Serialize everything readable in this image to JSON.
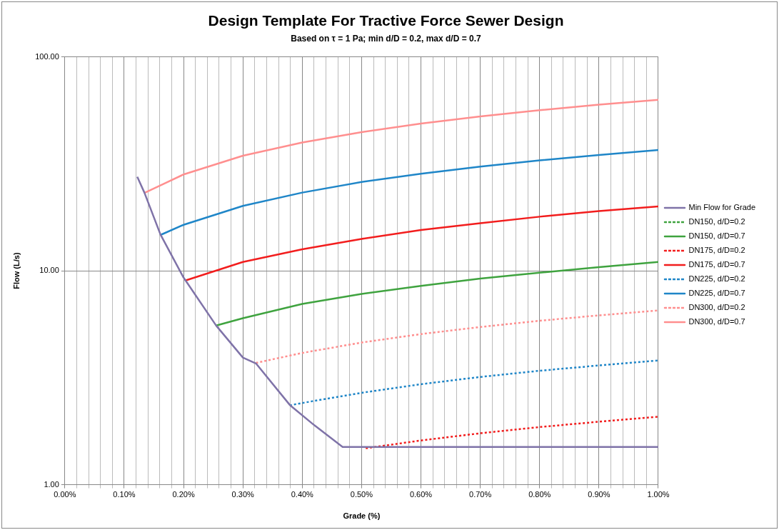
{
  "chart_data": {
    "type": "line",
    "title": "Design Template For Tractive Force Sewer Design",
    "subtitle": "Based on τ = 1 Pa; min d/D = 0.2, max d/D = 0.7",
    "xlabel": "Grade (%)",
    "ylabel": "Flow (L/s)",
    "log": "y",
    "grid": true,
    "legend": "right",
    "marker": "none",
    "xlim": [
      0,
      1
    ],
    "ylim": [
      1,
      100
    ],
    "xticks": [
      {
        "value": 0,
        "label": "0.00%"
      },
      {
        "value": 0.02,
        "label": null
      },
      {
        "value": 0.04,
        "label": null
      },
      {
        "value": 0.06,
        "label": null
      },
      {
        "value": 0.08,
        "label": null
      },
      {
        "value": 0.1,
        "label": "0.10%"
      },
      {
        "value": 0.12,
        "label": null
      },
      {
        "value": 0.14,
        "label": null
      },
      {
        "value": 0.16,
        "label": null
      },
      {
        "value": 0.18,
        "label": null
      },
      {
        "value": 0.2,
        "label": "0.20%"
      },
      {
        "value": 0.22,
        "label": null
      },
      {
        "value": 0.24,
        "label": null
      },
      {
        "value": 0.26,
        "label": null
      },
      {
        "value": 0.28,
        "label": null
      },
      {
        "value": 0.3,
        "label": "0.30%"
      },
      {
        "value": 0.32,
        "label": null
      },
      {
        "value": 0.34,
        "label": null
      },
      {
        "value": 0.36,
        "label": null
      },
      {
        "value": 0.38,
        "label": null
      },
      {
        "value": 0.4,
        "label": "0.40%"
      },
      {
        "value": 0.42,
        "label": null
      },
      {
        "value": 0.44,
        "label": null
      },
      {
        "value": 0.46,
        "label": null
      },
      {
        "value": 0.48,
        "label": null
      },
      {
        "value": 0.5,
        "label": "0.50%"
      },
      {
        "value": 0.52,
        "label": null
      },
      {
        "value": 0.54,
        "label": null
      },
      {
        "value": 0.56,
        "label": null
      },
      {
        "value": 0.58,
        "label": null
      },
      {
        "value": 0.6,
        "label": "0.60%"
      },
      {
        "value": 0.62,
        "label": null
      },
      {
        "value": 0.64,
        "label": null
      },
      {
        "value": 0.66,
        "label": null
      },
      {
        "value": 0.68,
        "label": null
      },
      {
        "value": 0.7,
        "label": "0.70%"
      },
      {
        "value": 0.72,
        "label": null
      },
      {
        "value": 0.74,
        "label": null
      },
      {
        "value": 0.76,
        "label": null
      },
      {
        "value": 0.78,
        "label": null
      },
      {
        "value": 0.8,
        "label": "0.80%"
      },
      {
        "value": 0.82,
        "label": null
      },
      {
        "value": 0.84,
        "label": null
      },
      {
        "value": 0.86,
        "label": null
      },
      {
        "value": 0.88,
        "label": null
      },
      {
        "value": 0.9,
        "label": "0.90%"
      },
      {
        "value": 0.92,
        "label": null
      },
      {
        "value": 0.94,
        "label": null
      },
      {
        "value": 0.96,
        "label": null
      },
      {
        "value": 0.98,
        "label": null
      },
      {
        "value": 1,
        "label": "1.00%"
      }
    ],
    "yticks": [
      {
        "value": 1,
        "label": "1.00"
      },
      {
        "value": 10,
        "label": "10.00"
      },
      {
        "value": 100,
        "label": "100.00"
      }
    ],
    "series": [
      {
        "name": "Min Flow for Grade",
        "color": "#7f73a8",
        "line_style": "solid",
        "x": [
          0.122,
          0.134,
          0.161,
          0.2,
          0.255,
          0.3,
          0.322,
          0.379,
          0.42,
          0.468,
          1.0
        ],
        "values": [
          27.5,
          23.2,
          14.8,
          9.3,
          5.54,
          3.93,
          3.69,
          2.36,
          1.9,
          1.5,
          1.5
        ]
      },
      {
        "name": "DN150, d/D=0.2",
        "color": "#3fa33f",
        "line_style": "dotted"
      },
      {
        "name": "DN150, d/D=0.7",
        "color": "#3fa33f",
        "line_style": "solid",
        "x": [
          0.255,
          0.3,
          0.4,
          0.5,
          0.6,
          0.7,
          0.8,
          0.9,
          1.0
        ],
        "values": [
          5.55,
          6.0,
          7.0,
          7.8,
          8.5,
          9.2,
          9.8,
          10.4,
          11.0
        ]
      },
      {
        "name": "DN175, d/D=0.2",
        "color": "#f21d1d",
        "line_style": "dotted",
        "x": [
          0.507,
          0.6,
          0.7,
          0.8,
          0.9,
          1.0
        ],
        "values": [
          1.48,
          1.61,
          1.74,
          1.86,
          1.97,
          2.08
        ]
      },
      {
        "name": "DN175, d/D=0.7",
        "color": "#f21d1d",
        "line_style": "solid",
        "x": [
          0.203,
          0.3,
          0.4,
          0.5,
          0.6,
          0.7,
          0.8,
          0.9,
          1.0
        ],
        "values": [
          9.0,
          11.0,
          12.6,
          14.1,
          15.5,
          16.7,
          17.9,
          19.0,
          20.0
        ]
      },
      {
        "name": "DN225, d/D=0.2",
        "color": "#1f86c8",
        "line_style": "dotted",
        "x": [
          0.379,
          0.4,
          0.5,
          0.6,
          0.7,
          0.8,
          0.9,
          1.0
        ],
        "values": [
          2.35,
          2.41,
          2.69,
          2.95,
          3.19,
          3.41,
          3.61,
          3.81
        ]
      },
      {
        "name": "DN225, d/D=0.7",
        "color": "#1f86c8",
        "line_style": "solid",
        "x": [
          0.161,
          0.2,
          0.3,
          0.4,
          0.5,
          0.6,
          0.7,
          0.8,
          0.9,
          1.0
        ],
        "values": [
          14.7,
          16.4,
          20.1,
          23.2,
          26.0,
          28.4,
          30.7,
          32.8,
          34.8,
          36.7
        ]
      },
      {
        "name": "DN300, d/D=0.2",
        "color": "#ff8f8f",
        "line_style": "dotted",
        "x": [
          0.322,
          0.4,
          0.5,
          0.6,
          0.7,
          0.8,
          0.9,
          1.0
        ],
        "values": [
          3.71,
          4.13,
          4.62,
          5.06,
          5.46,
          5.84,
          6.19,
          6.53
        ]
      },
      {
        "name": "DN300, d/D=0.7",
        "color": "#ff8f8f",
        "line_style": "solid",
        "x": [
          0.134,
          0.2,
          0.3,
          0.4,
          0.5,
          0.6,
          0.7,
          0.8,
          0.9,
          1.0
        ],
        "values": [
          23.1,
          28.2,
          34.5,
          39.8,
          44.5,
          48.8,
          52.7,
          56.3,
          59.8,
          63.0
        ]
      }
    ]
  }
}
